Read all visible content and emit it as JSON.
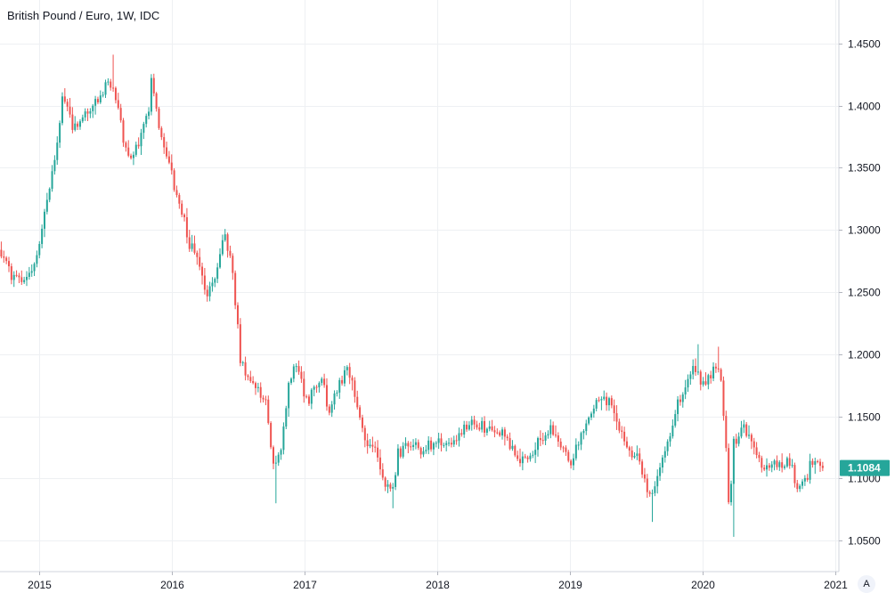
{
  "chart_title": "British Pound / Euro, 1W, IDC",
  "auto_scale_label": "A",
  "chart_data": {
    "type": "candlestick",
    "title": "British Pound / Euro, 1W, IDC",
    "symbol": "GBPEUR",
    "interval": "1W",
    "source": "IDC",
    "y_ticks": [
      "1.0500",
      "1.1000",
      "1.1500",
      "1.2000",
      "1.2500",
      "1.3000",
      "1.3500",
      "1.4000",
      "1.4500"
    ],
    "x_ticks": [
      "2015",
      "2016",
      "2017",
      "2018",
      "2019",
      "2020",
      "2021"
    ],
    "ylim": [
      1.025,
      1.485
    ],
    "xlim": [
      "2014-09-15",
      "2021-01-10"
    ],
    "grid": true,
    "last_price": "1.1084",
    "last_price_color": "#26a69a",
    "up_color": "#26a69a",
    "down_color": "#ef5350",
    "anchors": [
      [
        "2014-09-15",
        1.284
      ],
      [
        "2014-10-20",
        1.265
      ],
      [
        "2014-11-24",
        1.259
      ],
      [
        "2014-12-29",
        1.278
      ],
      [
        "2015-02-02",
        1.338
      ],
      [
        "2015-02-23",
        1.37
      ],
      [
        "2015-03-09",
        1.41
      ],
      [
        "2015-04-06",
        1.38
      ],
      [
        "2015-05-04",
        1.388
      ],
      [
        "2015-06-08",
        1.4
      ],
      [
        "2015-07-06",
        1.42
      ],
      [
        "2015-08-03",
        1.41
      ],
      [
        "2015-08-24",
        1.37
      ],
      [
        "2015-09-14",
        1.36
      ],
      [
        "2015-10-05",
        1.37
      ],
      [
        "2015-10-26",
        1.39
      ],
      [
        "2015-11-09",
        1.42
      ],
      [
        "2015-12-07",
        1.37
      ],
      [
        "2016-01-04",
        1.34
      ],
      [
        "2016-02-01",
        1.31
      ],
      [
        "2016-02-22",
        1.29
      ],
      [
        "2016-03-14",
        1.275
      ],
      [
        "2016-04-11",
        1.245
      ],
      [
        "2016-05-09",
        1.275
      ],
      [
        "2016-05-30",
        1.3
      ],
      [
        "2016-06-20",
        1.26
      ],
      [
        "2016-07-11",
        1.19
      ],
      [
        "2016-08-22",
        1.17
      ],
      [
        "2016-09-19",
        1.165
      ],
      [
        "2016-10-10",
        1.105
      ],
      [
        "2016-10-31",
        1.13
      ],
      [
        "2016-11-21",
        1.18
      ],
      [
        "2016-12-12",
        1.19
      ],
      [
        "2017-01-09",
        1.16
      ],
      [
        "2017-01-30",
        1.17
      ],
      [
        "2017-02-20",
        1.18
      ],
      [
        "2017-03-13",
        1.15
      ],
      [
        "2017-04-10",
        1.18
      ],
      [
        "2017-05-01",
        1.19
      ],
      [
        "2017-05-22",
        1.17
      ],
      [
        "2017-06-19",
        1.13
      ],
      [
        "2017-07-17",
        1.125
      ],
      [
        "2017-08-07",
        1.1
      ],
      [
        "2017-08-28",
        1.085
      ],
      [
        "2017-09-18",
        1.12
      ],
      [
        "2017-10-23",
        1.13
      ],
      [
        "2017-11-20",
        1.125
      ],
      [
        "2017-12-18",
        1.13
      ],
      [
        "2018-01-15",
        1.13
      ],
      [
        "2018-02-12",
        1.13
      ],
      [
        "2018-03-19",
        1.14
      ],
      [
        "2018-04-16",
        1.145
      ],
      [
        "2018-05-14",
        1.14
      ],
      [
        "2018-06-18",
        1.135
      ],
      [
        "2018-07-16",
        1.13
      ],
      [
        "2018-08-20",
        1.115
      ],
      [
        "2018-09-17",
        1.12
      ],
      [
        "2018-10-15",
        1.13
      ],
      [
        "2018-11-12",
        1.14
      ],
      [
        "2018-12-10",
        1.125
      ],
      [
        "2019-01-07",
        1.11
      ],
      [
        "2019-02-04",
        1.135
      ],
      [
        "2019-03-04",
        1.155
      ],
      [
        "2019-04-01",
        1.165
      ],
      [
        "2019-04-22",
        1.16
      ],
      [
        "2019-05-20",
        1.14
      ],
      [
        "2019-06-17",
        1.12
      ],
      [
        "2019-07-15",
        1.115
      ],
      [
        "2019-08-05",
        1.085
      ],
      [
        "2019-08-26",
        1.095
      ],
      [
        "2019-09-30",
        1.125
      ],
      [
        "2019-10-21",
        1.155
      ],
      [
        "2019-11-18",
        1.17
      ],
      [
        "2019-12-09",
        1.19
      ],
      [
        "2020-01-06",
        1.175
      ],
      [
        "2020-02-17",
        1.195
      ],
      [
        "2020-03-02",
        1.15
      ],
      [
        "2020-03-16",
        1.075
      ],
      [
        "2020-03-30",
        1.13
      ],
      [
        "2020-04-27",
        1.14
      ],
      [
        "2020-05-18",
        1.13
      ],
      [
        "2020-06-15",
        1.105
      ],
      [
        "2020-07-13",
        1.11
      ],
      [
        "2020-08-10",
        1.11
      ],
      [
        "2020-08-31",
        1.115
      ],
      [
        "2020-09-21",
        1.09
      ],
      [
        "2020-10-12",
        1.1
      ],
      [
        "2020-11-09",
        1.115
      ],
      [
        "2020-11-23",
        1.1084
      ]
    ],
    "extremes": [
      [
        "2015-07-20",
        1.441
      ],
      [
        "2016-10-10",
        1.08
      ],
      [
        "2017-08-28",
        1.076
      ],
      [
        "2019-08-12",
        1.065
      ],
      [
        "2019-12-16",
        1.208
      ],
      [
        "2020-02-10",
        1.206
      ],
      [
        "2020-03-23",
        1.053
      ]
    ]
  }
}
